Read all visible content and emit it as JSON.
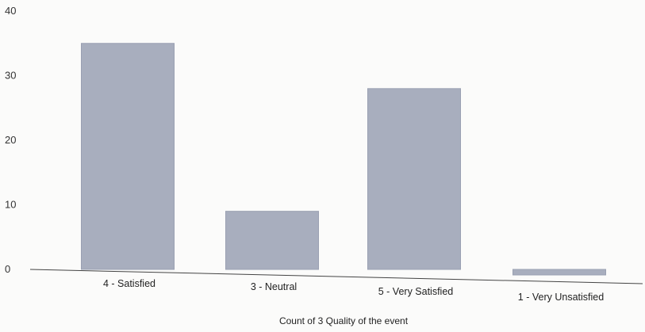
{
  "chart_data": {
    "type": "bar",
    "title": "",
    "xlabel": "Count of 3  Quality of the event",
    "ylabel": "",
    "categories": [
      "4 - Satisfied",
      "3 - Neutral",
      "5 - Very Satisfied",
      "1 - Very Unsatisfied"
    ],
    "values": [
      35,
      9,
      28,
      0
    ],
    "ylim": [
      0,
      40
    ],
    "yticks": [
      0,
      10,
      20,
      30,
      40
    ],
    "grid": false,
    "legend": "none",
    "bar_color": "#a8aebe",
    "axis_color": "#444444"
  }
}
